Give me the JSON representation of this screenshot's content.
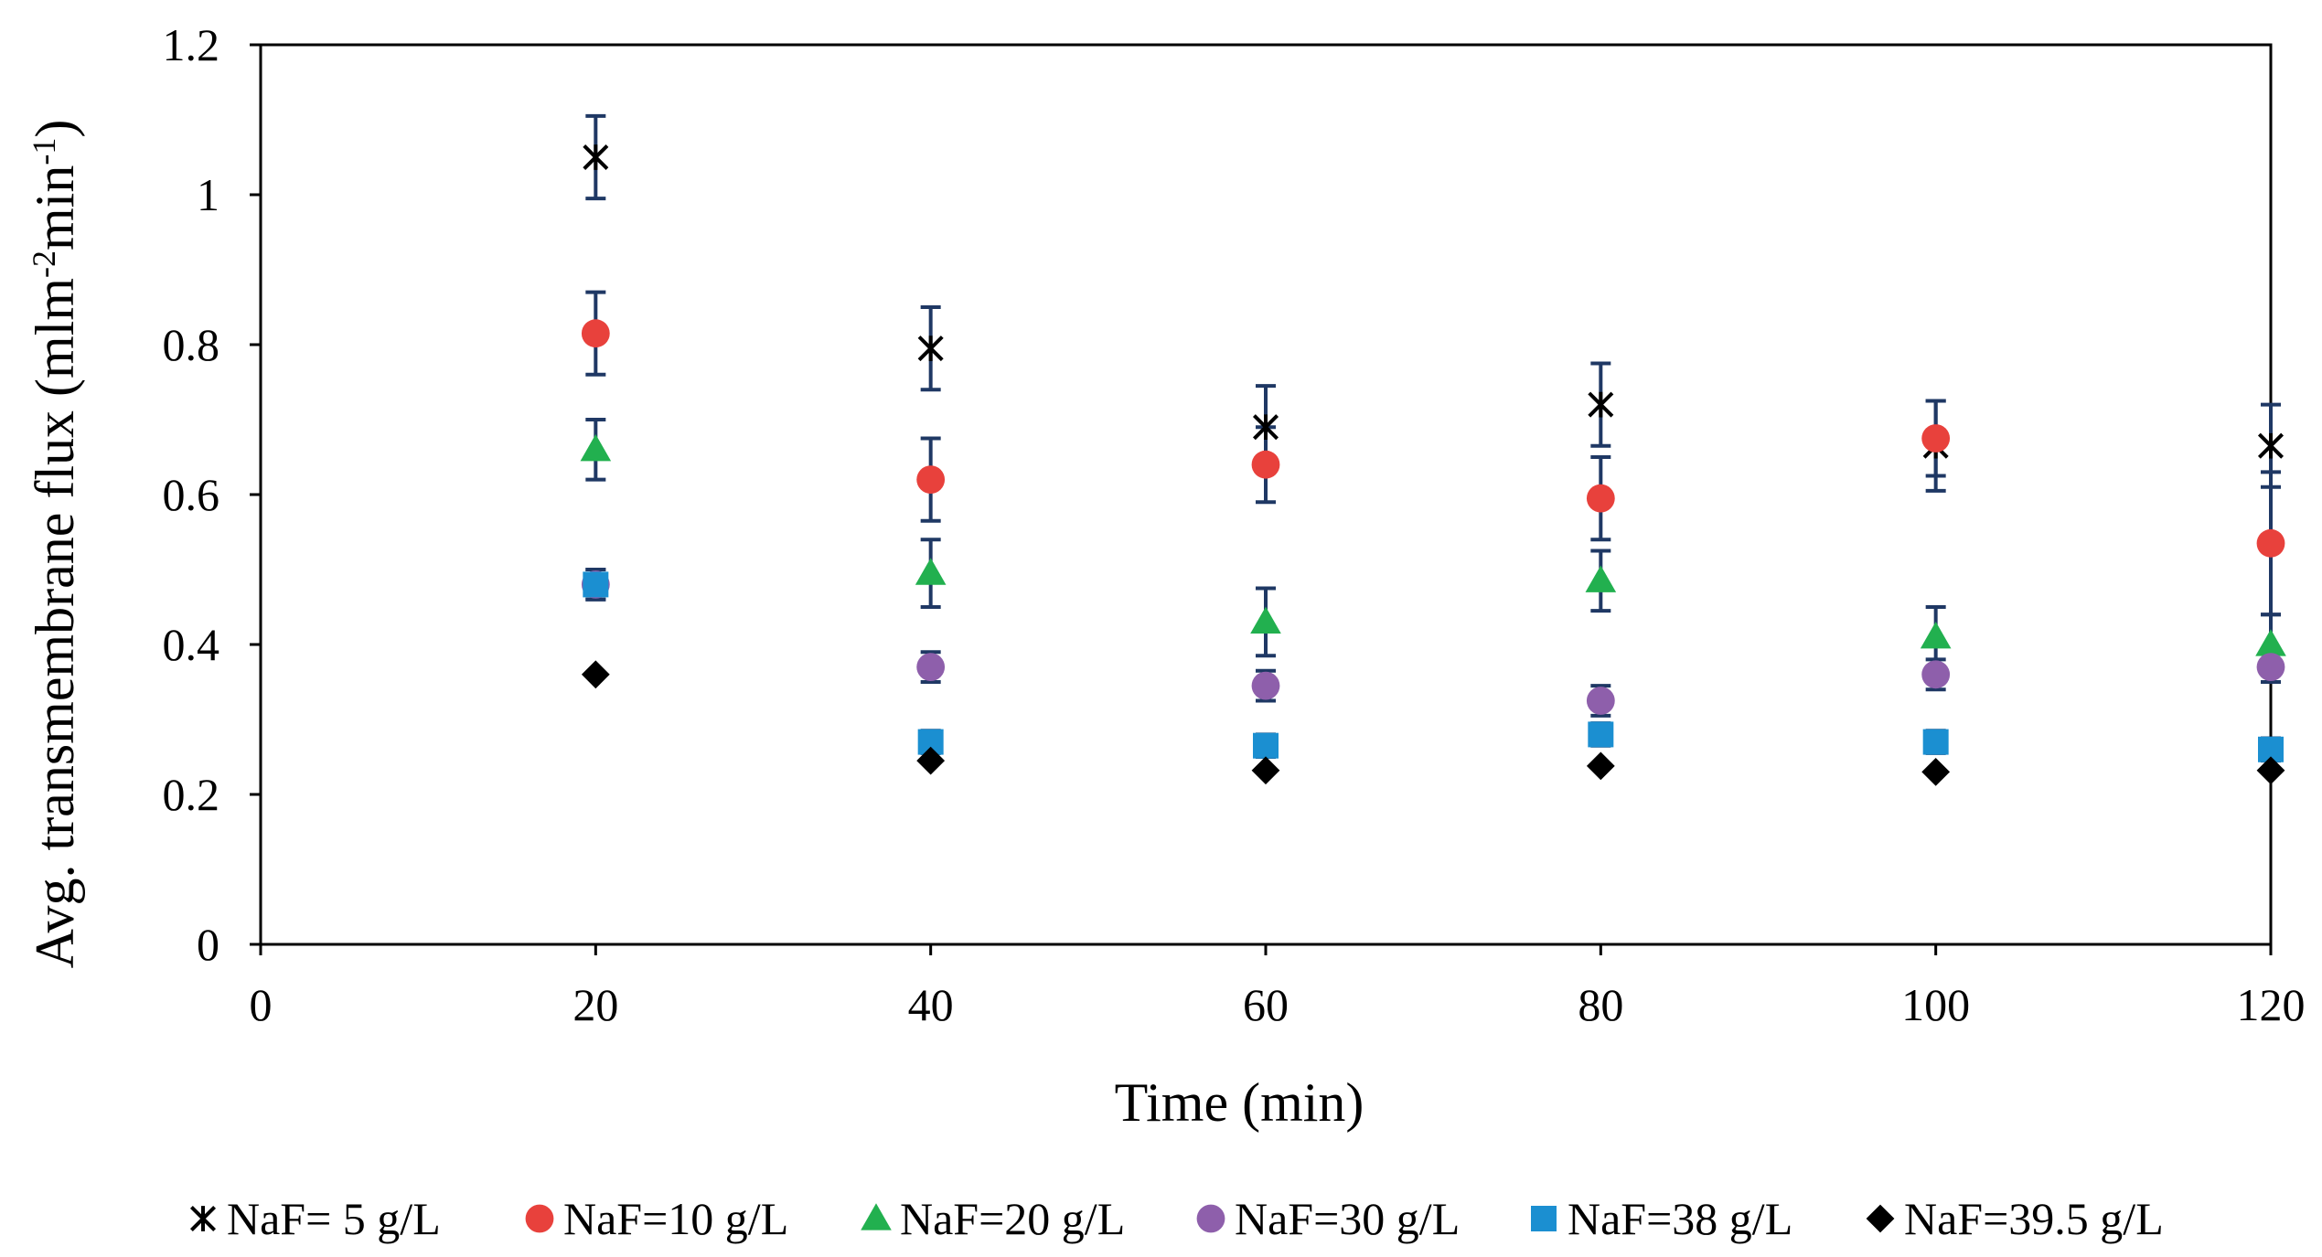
{
  "chart_data": {
    "type": "scatter",
    "title": "",
    "xlabel": "Time (min)",
    "ylabel_text": "Avg. transmembrane flux (mlm",
    "ylabel_sup1": "-2",
    "ylabel_mid": "min",
    "ylabel_sup2": "-1",
    "ylabel_close": ")",
    "xlim": [
      0,
      120
    ],
    "ylim": [
      0,
      1.2
    ],
    "x_ticks": [
      0,
      20,
      40,
      60,
      80,
      100,
      120
    ],
    "y_ticks": [
      0,
      0.2,
      0.4,
      0.6,
      0.8,
      1,
      1.2
    ],
    "x_tick_labels": [
      "0",
      "20",
      "40",
      "60",
      "80",
      "100",
      "120"
    ],
    "y_tick_labels": [
      "0",
      "0.2",
      "0.4",
      "0.6",
      "0.8",
      "1",
      "1.2"
    ],
    "grid": false,
    "legend_position": "bottom",
    "error_bar_color": "#1f3864",
    "x": [
      20,
      40,
      60,
      80,
      100,
      120
    ],
    "series": [
      {
        "name": "NaF= 5 g/L",
        "marker": "x",
        "color": "#000000",
        "values": [
          1.05,
          0.795,
          0.69,
          0.72,
          0.665,
          0.665
        ],
        "errors": [
          0.055,
          0.055,
          0.055,
          0.055,
          0.06,
          0.055
        ]
      },
      {
        "name": "NaF=10 g/L",
        "marker": "circle",
        "color": "#e8413c",
        "values": [
          0.815,
          0.62,
          0.64,
          0.595,
          0.675,
          0.535
        ],
        "errors": [
          0.055,
          0.055,
          0.05,
          0.055,
          0.05,
          0.095
        ]
      },
      {
        "name": "NaF=20 g/L",
        "marker": "triangle",
        "color": "#22b04f",
        "values": [
          0.66,
          0.495,
          0.43,
          0.485,
          0.41,
          0.4
        ],
        "errors": [
          0.04,
          0.045,
          0.045,
          0.04,
          0.04,
          0.04
        ]
      },
      {
        "name": "NaF=30 g/L",
        "marker": "circle",
        "color": "#8e5fab",
        "values": [
          0.48,
          0.37,
          0.345,
          0.325,
          0.36,
          0.37
        ],
        "errors": [
          0.02,
          0.02,
          0.02,
          0.02,
          0.02,
          0.02
        ]
      },
      {
        "name": "NaF=38 g/L",
        "marker": "square",
        "color": "#1b8fd1",
        "values": [
          0.48,
          0.27,
          0.265,
          0.28,
          0.27,
          0.26
        ],
        "errors": [
          0.02,
          0.015,
          0.015,
          0.015,
          0.015,
          0.015
        ]
      },
      {
        "name": "NaF=39.5 g/L",
        "marker": "diamond",
        "color": "#000000",
        "values": [
          0.36,
          0.245,
          0.232,
          0.238,
          0.23,
          0.232
        ],
        "errors": [
          0,
          0,
          0,
          0,
          0,
          0
        ]
      }
    ]
  }
}
